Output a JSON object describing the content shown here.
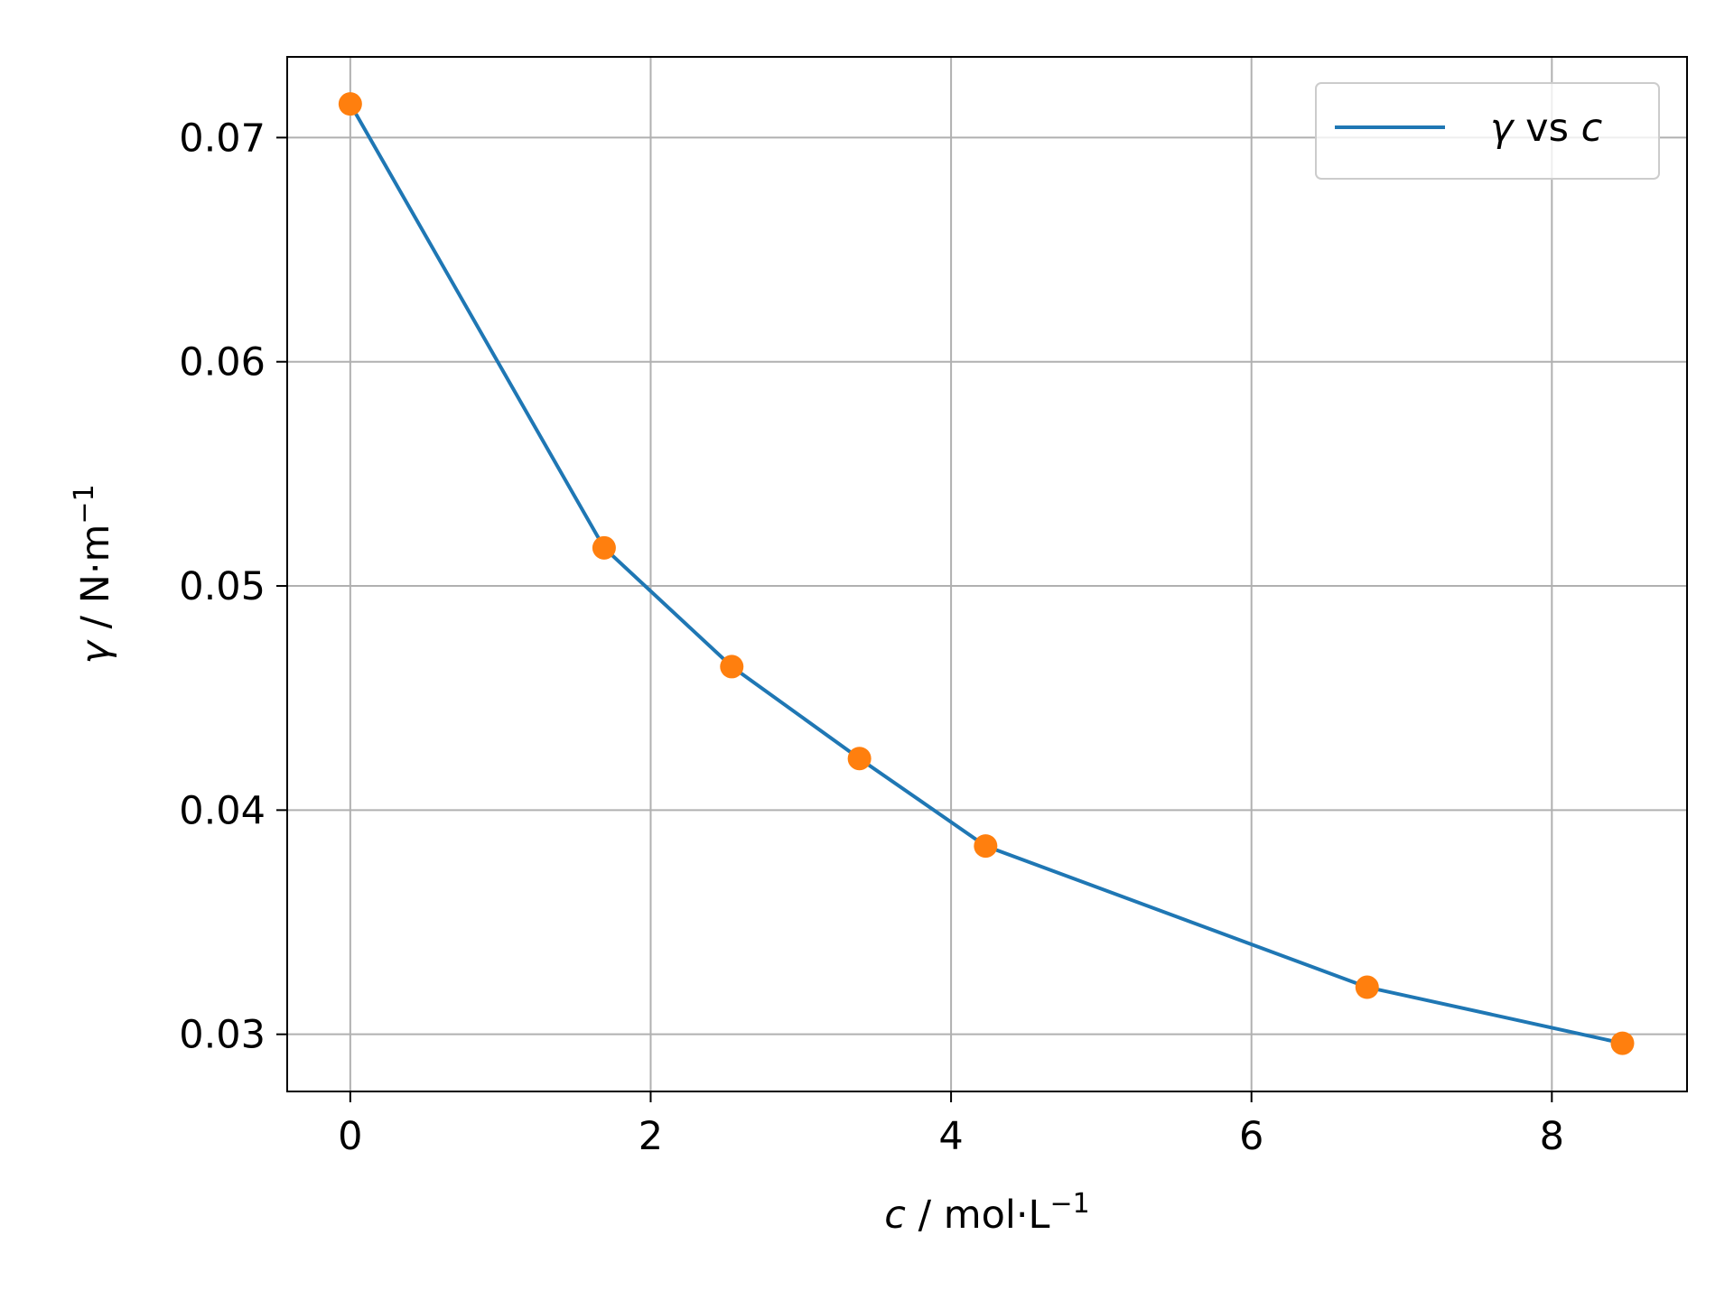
{
  "chart_data": {
    "type": "line",
    "xlabel": {
      "var": "c",
      "unit": " / mol·L",
      "sup": "−1"
    },
    "ylabel": {
      "var": "γ",
      "unit": " / N·m",
      "sup": "−1"
    },
    "xlim": [
      -0.42,
      8.9
    ],
    "ylim": [
      0.02745,
      0.0736
    ],
    "x_ticks": [
      0,
      2,
      4,
      6,
      8
    ],
    "x_tick_labels": [
      "0",
      "2",
      "4",
      "6",
      "8"
    ],
    "y_ticks": [
      0.03,
      0.04,
      0.05,
      0.06,
      0.07
    ],
    "y_tick_labels": [
      "0.03",
      "0.04",
      "0.05",
      "0.06",
      "0.07"
    ],
    "grid": true,
    "legend_position": "top-right",
    "series": [
      {
        "name": {
          "a": "γ",
          "mid": " vs ",
          "b": "c"
        },
        "color": "#1f77b4",
        "marker_color": "#ff7f0e",
        "x": [
          0.0,
          1.69,
          2.54,
          3.39,
          4.23,
          6.77,
          8.47
        ],
        "y": [
          0.0715,
          0.0517,
          0.0464,
          0.0423,
          0.0384,
          0.0321,
          0.0296
        ]
      }
    ]
  }
}
